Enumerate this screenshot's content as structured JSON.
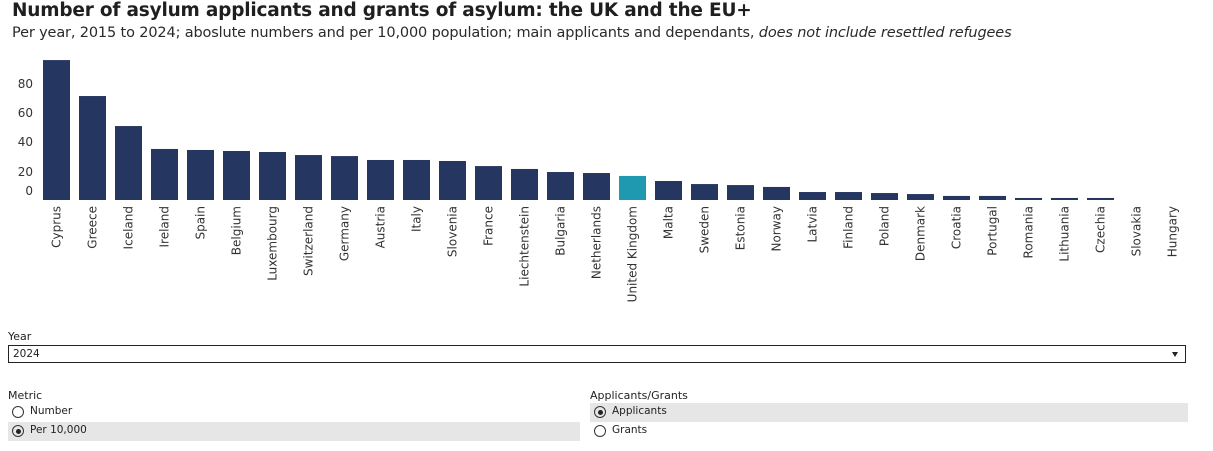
{
  "header": {
    "title": "Number of asylum applicants and grants of asylum: the UK and the EU+",
    "subtitle_plain": "Per year, 2015 to 2024; aboslute numbers and per 10,000 population; main applicants and dependants, ",
    "subtitle_italic": "does not include resettled refugees"
  },
  "colors": {
    "bar": "#253660",
    "highlight": "#1E99AF"
  },
  "chart_data": {
    "type": "bar",
    "title": "Number of asylum applicants and grants of asylum: the UK and the EU+",
    "xlabel": "",
    "ylabel": "",
    "ylim": [
      0,
      100
    ],
    "yticks": [
      0,
      20,
      40,
      60,
      80
    ],
    "grid": false,
    "highlight_category": "United Kingdom",
    "categories": [
      "Cyprus",
      "Greece",
      "Iceland",
      "Ireland",
      "Spain",
      "Belgium",
      "Luxembourg",
      "Switzerland",
      "Germany",
      "Austria",
      "Italy",
      "Slovenia",
      "France",
      "Liechtenstein",
      "Bulgaria",
      "Netherlands",
      "United Kingdom",
      "Malta",
      "Sweden",
      "Estonia",
      "Norway",
      "Latvia",
      "Finland",
      "Poland",
      "Denmark",
      "Croatia",
      "Portugal",
      "Romania",
      "Lithuania",
      "Czechia",
      "Slovakia",
      "Hungary"
    ],
    "values": [
      96.5,
      71.7,
      51.0,
      35.2,
      34.5,
      33.8,
      33.1,
      31.0,
      30.3,
      27.6,
      27.6,
      26.9,
      23.4,
      21.4,
      19.3,
      18.6,
      16.6,
      13.1,
      11.0,
      10.3,
      9.0,
      5.5,
      5.5,
      4.8,
      4.1,
      2.8,
      2.8,
      1.4,
      1.4,
      1.4,
      0,
      0
    ]
  },
  "controls": {
    "year": {
      "label": "Year",
      "selected": "2024"
    },
    "metric": {
      "label": "Metric",
      "options": [
        {
          "label": "Number",
          "selected": false
        },
        {
          "label": "Per 10,000",
          "selected": true
        }
      ]
    },
    "type": {
      "label": "Applicants/Grants",
      "options": [
        {
          "label": "Applicants",
          "selected": true
        },
        {
          "label": "Grants",
          "selected": false
        }
      ]
    }
  }
}
